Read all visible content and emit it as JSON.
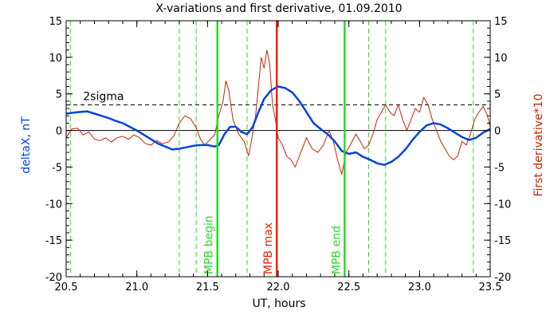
{
  "chart_data": {
    "type": "line",
    "title": "X-variations and first derivative, 01.09.2010",
    "xlabel": "UT, hours",
    "ylabel_left": "deltaX, nT",
    "ylabel_right": "First derivative*10",
    "xlim": [
      20.5,
      23.5
    ],
    "ylim": [
      -20,
      15
    ],
    "xticks": [
      20.5,
      21.0,
      21.5,
      22.0,
      22.5,
      23.0,
      23.5
    ],
    "xtick_labels": [
      "20.5",
      "21.0",
      "21.5",
      "22.0",
      "22.5",
      "23.0",
      "23.5"
    ],
    "yticks": [
      15,
      10,
      5,
      0,
      -5,
      -10,
      -15,
      -20
    ],
    "ytick_labels": [
      "15",
      "10",
      "5",
      "0",
      "-5",
      "-10",
      "-15",
      "-20"
    ],
    "colors": {
      "deltaX": "#0044dd",
      "derivative": "#cc2200",
      "mpb": "#22dd22",
      "max": "#ee2200",
      "axes": "#000000"
    },
    "sigma_label": "2sigma",
    "sigma_level": 3.5,
    "zero_line": 0,
    "vertical_solid": [
      {
        "x": 21.57,
        "label": "MPB begin",
        "color": "#22dd22"
      },
      {
        "x": 21.99,
        "label": "MPB max",
        "color": "#ee2200"
      },
      {
        "x": 22.47,
        "label": "MPB end",
        "color": "#22dd22"
      }
    ],
    "vertical_dashed": [
      20.53,
      21.3,
      21.42,
      21.78,
      22.64,
      22.76,
      23.38
    ],
    "series": [
      {
        "key": "deltaX",
        "values": [
          [
            20.5,
            2.3
          ],
          [
            20.58,
            2.5
          ],
          [
            20.65,
            2.6
          ],
          [
            20.7,
            2.3
          ],
          [
            20.75,
            2.0
          ],
          [
            20.8,
            1.7
          ],
          [
            20.85,
            1.3
          ],
          [
            20.9,
            1.0
          ],
          [
            20.95,
            0.5
          ],
          [
            21.0,
            0.0
          ],
          [
            21.05,
            -0.6
          ],
          [
            21.1,
            -1.2
          ],
          [
            21.15,
            -1.8
          ],
          [
            21.2,
            -2.2
          ],
          [
            21.25,
            -2.6
          ],
          [
            21.3,
            -2.5
          ],
          [
            21.35,
            -2.3
          ],
          [
            21.4,
            -2.1
          ],
          [
            21.45,
            -2.0
          ],
          [
            21.5,
            -2.0
          ],
          [
            21.55,
            -2.2
          ],
          [
            21.58,
            -2.0
          ],
          [
            21.62,
            -0.5
          ],
          [
            21.66,
            0.5
          ],
          [
            21.7,
            0.5
          ],
          [
            21.74,
            -0.2
          ],
          [
            21.78,
            -0.5
          ],
          [
            21.82,
            0.5
          ],
          [
            21.86,
            2.5
          ],
          [
            21.9,
            4.3
          ],
          [
            21.95,
            5.5
          ],
          [
            22.0,
            6.0
          ],
          [
            22.05,
            5.8
          ],
          [
            22.1,
            5.2
          ],
          [
            22.15,
            4.0
          ],
          [
            22.2,
            2.5
          ],
          [
            22.25,
            1.0
          ],
          [
            22.3,
            0.2
          ],
          [
            22.35,
            -0.5
          ],
          [
            22.4,
            -1.5
          ],
          [
            22.45,
            -2.8
          ],
          [
            22.5,
            -3.2
          ],
          [
            22.55,
            -3.0
          ],
          [
            22.6,
            -3.6
          ],
          [
            22.65,
            -4.0
          ],
          [
            22.7,
            -4.5
          ],
          [
            22.75,
            -4.7
          ],
          [
            22.8,
            -4.3
          ],
          [
            22.85,
            -3.6
          ],
          [
            22.9,
            -2.6
          ],
          [
            22.95,
            -1.3
          ],
          [
            23.0,
            -0.2
          ],
          [
            23.05,
            0.7
          ],
          [
            23.1,
            1.0
          ],
          [
            23.15,
            0.8
          ],
          [
            23.2,
            0.3
          ],
          [
            23.25,
            -0.3
          ],
          [
            23.3,
            -0.9
          ],
          [
            23.35,
            -1.3
          ],
          [
            23.4,
            -1.0
          ],
          [
            23.45,
            -0.3
          ],
          [
            23.5,
            0.2
          ]
        ]
      },
      {
        "key": "derivative",
        "values": [
          [
            20.5,
            -1.0
          ],
          [
            20.54,
            0.2
          ],
          [
            20.58,
            0.3
          ],
          [
            20.62,
            -0.6
          ],
          [
            20.66,
            -0.2
          ],
          [
            20.7,
            -1.2
          ],
          [
            20.74,
            -1.4
          ],
          [
            20.78,
            -1.0
          ],
          [
            20.82,
            -1.6
          ],
          [
            20.86,
            -1.0
          ],
          [
            20.9,
            -0.8
          ],
          [
            20.94,
            -1.2
          ],
          [
            20.98,
            -0.6
          ],
          [
            21.02,
            -1.0
          ],
          [
            21.06,
            -1.8
          ],
          [
            21.1,
            -2.0
          ],
          [
            21.14,
            -1.4
          ],
          [
            21.18,
            -1.8
          ],
          [
            21.22,
            -1.6
          ],
          [
            21.26,
            -0.8
          ],
          [
            21.3,
            1.0
          ],
          [
            21.34,
            2.0
          ],
          [
            21.38,
            1.6
          ],
          [
            21.42,
            0.4
          ],
          [
            21.45,
            -1.2
          ],
          [
            21.48,
            -2.0
          ],
          [
            21.52,
            -1.2
          ],
          [
            21.55,
            -0.6
          ],
          [
            21.58,
            2.0
          ],
          [
            21.61,
            4.0
          ],
          [
            21.63,
            6.8
          ],
          [
            21.65,
            5.5
          ],
          [
            21.68,
            1.5
          ],
          [
            21.72,
            -0.5
          ],
          [
            21.76,
            -1.5
          ],
          [
            21.79,
            -3.5
          ],
          [
            21.81,
            -1.5
          ],
          [
            21.84,
            2.0
          ],
          [
            21.86,
            6.0
          ],
          [
            21.88,
            10.0
          ],
          [
            21.9,
            8.5
          ],
          [
            21.92,
            11.0
          ],
          [
            21.94,
            9.0
          ],
          [
            21.96,
            3.5
          ],
          [
            21.98,
            1.5
          ],
          [
            22.0,
            -1.0
          ],
          [
            22.03,
            -2.0
          ],
          [
            22.06,
            -3.5
          ],
          [
            22.09,
            -4.0
          ],
          [
            22.12,
            -5.0
          ],
          [
            22.16,
            -3.0
          ],
          [
            22.2,
            -1.0
          ],
          [
            22.24,
            -2.5
          ],
          [
            22.28,
            -3.0
          ],
          [
            22.32,
            -2.0
          ],
          [
            22.36,
            0.0
          ],
          [
            22.39,
            -1.5
          ],
          [
            22.42,
            -4.0
          ],
          [
            22.45,
            -6.0
          ],
          [
            22.48,
            -3.0
          ],
          [
            22.51,
            -2.0
          ],
          [
            22.55,
            -0.5
          ],
          [
            22.58,
            -1.5
          ],
          [
            22.61,
            -2.5
          ],
          [
            22.64,
            -2.0
          ],
          [
            22.67,
            -0.5
          ],
          [
            22.7,
            1.5
          ],
          [
            22.73,
            2.5
          ],
          [
            22.76,
            3.5
          ],
          [
            22.79,
            2.5
          ],
          [
            22.82,
            2.0
          ],
          [
            22.85,
            3.5
          ],
          [
            22.88,
            1.5
          ],
          [
            22.91,
            0.0
          ],
          [
            22.94,
            1.5
          ],
          [
            22.97,
            3.0
          ],
          [
            23.0,
            2.5
          ],
          [
            23.03,
            4.5
          ],
          [
            23.06,
            3.5
          ],
          [
            23.09,
            1.5
          ],
          [
            23.12,
            0.0
          ],
          [
            23.15,
            -1.5
          ],
          [
            23.18,
            -2.5
          ],
          [
            23.21,
            -3.5
          ],
          [
            23.24,
            -4.0
          ],
          [
            23.27,
            -3.5
          ],
          [
            23.3,
            -1.5
          ],
          [
            23.33,
            -2.0
          ],
          [
            23.36,
            -0.5
          ],
          [
            23.39,
            1.5
          ],
          [
            23.42,
            2.5
          ],
          [
            23.45,
            3.3
          ],
          [
            23.48,
            2.0
          ],
          [
            23.5,
            0.5
          ]
        ]
      }
    ]
  }
}
